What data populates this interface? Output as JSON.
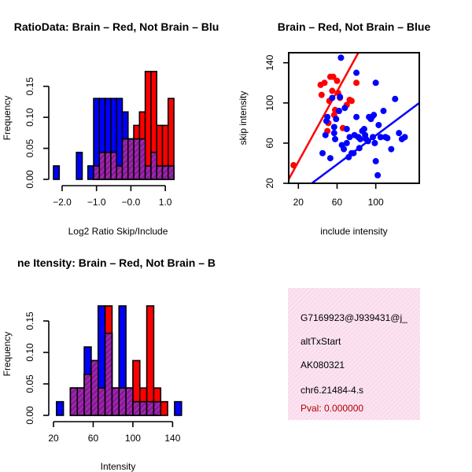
{
  "chart_data": [
    {
      "type": "histogram",
      "title": "RatioData: Brain – Red, Not Brain – Blu",
      "xlabel": "Log2 Ratio Skip/Include",
      "ylabel": "Frequency",
      "xlim": [
        -2.25,
        1.5
      ],
      "ylim": [
        0,
        0.175
      ],
      "xticks": [
        -2.0,
        -1.0,
        0.0,
        1.0
      ],
      "xtick_labels": [
        "−2.0",
        "−1.0",
        "−0.0",
        "1.0"
      ],
      "yticks": [
        0.0,
        0.05,
        0.1,
        0.15
      ],
      "ytick_labels": [
        "0.00",
        "0.05",
        "0.10",
        "0.15"
      ],
      "bin_width": 0.167,
      "series": [
        {
          "name": "Not Brain",
          "color": "#0000ff",
          "bins": [
            [
              -2.25,
              0.0217
            ],
            [
              -1.583,
              0.0435
            ],
            [
              -1.25,
              0.0217
            ],
            [
              -1.083,
              0.1304
            ],
            [
              -0.917,
              0.1304
            ],
            [
              -0.75,
              0.1304
            ],
            [
              -0.583,
              0.1304
            ],
            [
              -0.417,
              0.1304
            ],
            [
              -0.25,
              0.1087
            ],
            [
              -0.083,
              0.0652
            ],
            [
              0.083,
              0.0652
            ],
            [
              0.25,
              0.0652
            ],
            [
              0.417,
              0.0217
            ],
            [
              0.583,
              0.0435
            ],
            [
              0.75,
              0.0217
            ],
            [
              0.917,
              0.0217
            ],
            [
              1.083,
              0.0217
            ]
          ]
        },
        {
          "name": "Brain",
          "color": "#ff0000",
          "bins": [
            [
              -1.083,
              0.0217
            ],
            [
              -0.917,
              0.0435
            ],
            [
              -0.75,
              0.0435
            ],
            [
              -0.583,
              0.0435
            ],
            [
              -0.417,
              0.0217
            ],
            [
              -0.25,
              0.0652
            ],
            [
              -0.083,
              0.0652
            ],
            [
              0.083,
              0.087
            ],
            [
              0.25,
              0.1087
            ],
            [
              0.417,
              0.1739
            ],
            [
              0.583,
              0.1739
            ],
            [
              0.75,
              0.087
            ],
            [
              0.917,
              0.087
            ],
            [
              1.083,
              0.1304
            ]
          ]
        }
      ]
    },
    {
      "type": "scatter",
      "title": "Brain – Red, Not Brain – Blue",
      "xlabel": "include intensity",
      "ylabel": "skip intensity",
      "xlim": [
        10,
        145
      ],
      "ylim": [
        20,
        150
      ],
      "xticks": [
        20,
        60,
        100
      ],
      "yticks": [
        20,
        60,
        100,
        140
      ],
      "series": [
        {
          "name": "Brain",
          "color": "#ff0000",
          "points": [
            [
              15,
              38
            ],
            [
              43,
              118
            ],
            [
              44,
              108
            ],
            [
              47,
              120
            ],
            [
              50,
              72
            ],
            [
              51,
              80
            ],
            [
              52,
              102
            ],
            [
              53,
              126
            ],
            [
              55,
              112
            ],
            [
              56,
              126
            ],
            [
              57,
              88
            ],
            [
              58,
              93
            ],
            [
              60,
              122
            ],
            [
              61,
              110
            ],
            [
              62,
              92
            ],
            [
              63,
              105
            ],
            [
              66,
              75
            ],
            [
              70,
              98
            ],
            [
              73,
              103
            ],
            [
              75,
              102
            ],
            [
              80,
              120
            ]
          ],
          "fit": [
            [
              10,
              24
            ],
            [
              82,
              150
            ]
          ]
        },
        {
          "name": "Not Brain",
          "color": "#0000ff",
          "points": [
            [
              45,
              50
            ],
            [
              48,
              68
            ],
            [
              49,
              82
            ],
            [
              50,
              86
            ],
            [
              53,
              45
            ],
            [
              55,
              105
            ],
            [
              57,
              76
            ],
            [
              57,
              70
            ],
            [
              58,
              64
            ],
            [
              59,
              84
            ],
            [
              62,
              92
            ],
            [
              63,
              106
            ],
            [
              64,
              145
            ],
            [
              65,
              58
            ],
            [
              67,
              54
            ],
            [
              68,
              95
            ],
            [
              70,
              74
            ],
            [
              70,
              60
            ],
            [
              72,
              46
            ],
            [
              73,
              66
            ],
            [
              75,
              50
            ],
            [
              77,
              50
            ],
            [
              78,
              68
            ],
            [
              80,
              130
            ],
            [
              80,
              86
            ],
            [
              82,
              66
            ],
            [
              83,
              55
            ],
            [
              84,
              64
            ],
            [
              86,
              72
            ],
            [
              88,
              74
            ],
            [
              89,
              68
            ],
            [
              90,
              64
            ],
            [
              92,
              62
            ],
            [
              93,
              86
            ],
            [
              95,
              84
            ],
            [
              96,
              86
            ],
            [
              97,
              66
            ],
            [
              98,
              88
            ],
            [
              99,
              60
            ],
            [
              100,
              120
            ],
            [
              100,
              42
            ],
            [
              102,
              28
            ],
            [
              103,
              78
            ],
            [
              105,
              66
            ],
            [
              108,
              92
            ],
            [
              110,
              66
            ],
            [
              112,
              65
            ],
            [
              116,
              54
            ],
            [
              120,
              104
            ],
            [
              124,
              70
            ],
            [
              127,
              64
            ],
            [
              130,
              66
            ]
          ],
          "fit": [
            [
              20,
              10
            ],
            [
              145,
              100
            ]
          ]
        }
      ]
    },
    {
      "type": "histogram",
      "title": "ne Itensity: Brain – Red, Not Brain – B",
      "xlabel": "Intensity",
      "ylabel": "Frequency",
      "xlim": [
        20,
        150
      ],
      "ylim": [
        0,
        0.175
      ],
      "xticks": [
        20,
        60,
        100,
        140
      ],
      "yticks": [
        0.0,
        0.05,
        0.1,
        0.15
      ],
      "ytick_labels": [
        "0.00",
        "0.05",
        "0.10",
        "0.15"
      ],
      "bin_width": 7,
      "series": [
        {
          "name": "Not Brain",
          "color": "#0000ff",
          "bins": [
            [
              23,
              0.0217
            ],
            [
              37,
              0.0435
            ],
            [
              44,
              0.0435
            ],
            [
              51,
              0.1087
            ],
            [
              58,
              0.087
            ],
            [
              65,
              0.1739
            ],
            [
              72,
              0.1304
            ],
            [
              79,
              0.0435
            ],
            [
              86,
              0.1739
            ],
            [
              93,
              0.0435
            ],
            [
              100,
              0.0217
            ],
            [
              107,
              0.0217
            ],
            [
              114,
              0.0217
            ],
            [
              121,
              0.0217
            ],
            [
              142,
              0.0217
            ]
          ]
        },
        {
          "name": "Brain",
          "color": "#ff0000",
          "bins": [
            [
              37,
              0.0435
            ],
            [
              44,
              0.0435
            ],
            [
              51,
              0.0652
            ],
            [
              58,
              0.087
            ],
            [
              65,
              0.0435
            ],
            [
              72,
              0.1739
            ],
            [
              79,
              0.0435
            ],
            [
              86,
              0.0435
            ],
            [
              93,
              0.0435
            ],
            [
              100,
              0.087
            ],
            [
              107,
              0.0435
            ],
            [
              114,
              0.1739
            ],
            [
              121,
              0.0435
            ],
            [
              128,
              0.0217
            ]
          ]
        }
      ]
    }
  ],
  "info_box": {
    "line1": "G7169923@J939431@j_",
    "line2": "altTxStart",
    "line3": "AK080321",
    "line4": "chr6.21484-4.s",
    "pval": "Pval: 0.000000"
  }
}
